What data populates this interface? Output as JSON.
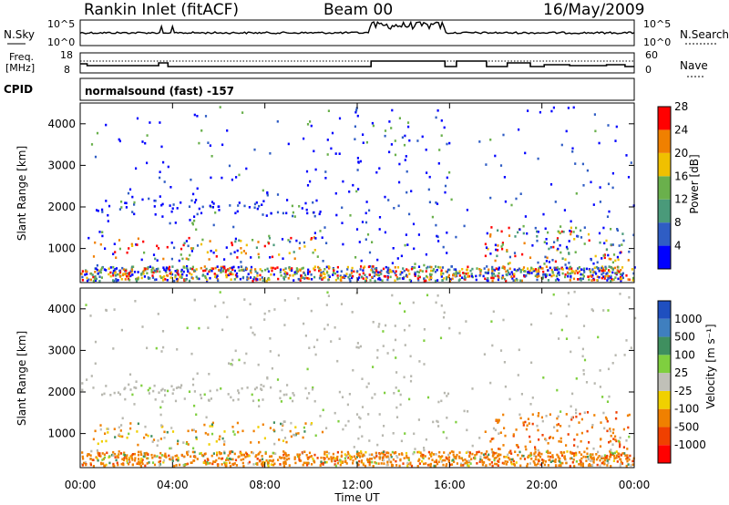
{
  "header": {
    "station": "Rankin Inlet (fitACF)",
    "beam": "Beam 00",
    "date": "16/May/2009"
  },
  "strip_panels": {
    "nsky_label": "N.Sky",
    "nsearch_label": "N.Search",
    "nsky_top_tick": "10^5",
    "nsky_bottom_tick": "10^0",
    "nsearch_top_tick": "10^5",
    "nsearch_bottom_tick": "10^0",
    "freq_label_1": "Freq.",
    "freq_label_2": "[MHz]",
    "freq_top_tick": "18",
    "freq_bottom_tick": "8",
    "nave_label": "Nave",
    "nave_top_tick": "60",
    "nave_bottom_tick": "0",
    "cpid_label": "CPID",
    "cpid_value": "normalsound (fast) -157"
  },
  "chart_data": [
    {
      "type": "heatmap",
      "name": "power",
      "ylabel": "Slant Range [km]",
      "ylim": [
        180,
        4500
      ],
      "yticks": [
        "1000",
        "2000",
        "3000",
        "4000"
      ],
      "ytick_values": [
        1000,
        2000,
        3000,
        4000
      ],
      "colorbar_label": "Power [dB]",
      "colorbar_ticks": [
        "4",
        "8",
        "12",
        "16",
        "20",
        "24",
        "28"
      ],
      "colorbar_colors": [
        "#0000ff",
        "#2f5dc4",
        "#4a9a7a",
        "#6ab04c",
        "#f0c000",
        "#f08000",
        "#ff0000"
      ],
      "bands": [
        {
          "t0": 0.5,
          "t1": 10.5,
          "r0": 1750,
          "r1": 2150,
          "class": "weak"
        },
        {
          "t0": 0.5,
          "t1": 10.5,
          "r0": 700,
          "r1": 1250,
          "class": "strong"
        },
        {
          "t0": 17.5,
          "t1": 23.8,
          "r0": 400,
          "r1": 1500,
          "class": "mixed"
        }
      ]
    },
    {
      "type": "heatmap",
      "name": "velocity",
      "ylabel": "Slant Range [km]",
      "xlabel": "Time UT",
      "ylim": [
        180,
        4500
      ],
      "xlim": [
        0,
        24
      ],
      "xticks": [
        "00:00",
        "04:00",
        "08:00",
        "12:00",
        "16:00",
        "20:00",
        "00:00"
      ],
      "yticks": [
        "1000",
        "2000",
        "3000",
        "4000"
      ],
      "ytick_values": [
        1000,
        2000,
        3000,
        4000
      ],
      "colorbar_label": "Velocity [m s⁻¹]",
      "colorbar_ticks": [
        "1000",
        "500",
        "100",
        "25",
        "-25",
        "-100",
        "-500",
        "-1000"
      ],
      "colorbar_colors": [
        "#1f4fbf",
        "#3f7fbf",
        "#3f8f5f",
        "#7fcf3f",
        "#c0c0b8",
        "#f0d000",
        "#f08000",
        "#f04000",
        "#ff0000"
      ]
    }
  ],
  "colors": {
    "ground_scatter": "#b8b8b0",
    "axis": "#000000"
  }
}
